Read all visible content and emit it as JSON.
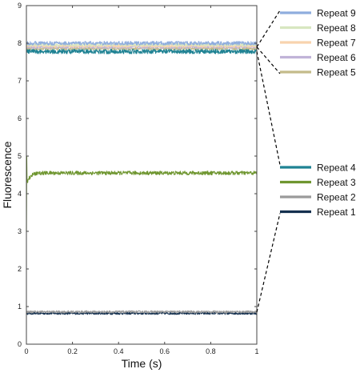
{
  "chart_data": {
    "type": "line",
    "title": "",
    "xlabel": "Time (s)",
    "ylabel": "Fluorescence",
    "xlim": [
      0,
      1
    ],
    "ylim": [
      0,
      9
    ],
    "xticks": [
      0,
      0.2,
      0.4,
      0.6,
      0.8,
      1
    ],
    "xtick_labels": [
      "0",
      "0.2",
      "0.4",
      "0.6",
      "0.8",
      "1"
    ],
    "yticks": [
      0,
      1,
      2,
      3,
      4,
      5,
      6,
      7,
      8,
      9
    ],
    "ytick_labels": [
      "0",
      "1",
      "2",
      "3",
      "4",
      "5",
      "6",
      "7",
      "8",
      "9"
    ],
    "grid": false,
    "legend_placement": "right, two groups joined to the curves by dashed lines",
    "series": [
      {
        "name": "Repeat  1",
        "color": "#14304f",
        "level": 0.82,
        "noise": 0.03
      },
      {
        "name": "Repeat  2",
        "color": "#9a9a9a",
        "level": 0.86,
        "noise": 0.03
      },
      {
        "name": "Repeat  3",
        "color": "#6f9630",
        "level": 4.55,
        "noise": 0.05,
        "transient": {
          "start": 3.0,
          "peak": 5.0
        }
      },
      {
        "name": "Repeat  4",
        "color": "#1f8293",
        "level": 7.78,
        "noise": 0.06
      },
      {
        "name": "Repeat  5",
        "color": "#c4bb8a",
        "level": 7.86,
        "noise": 0.04
      },
      {
        "name": "Repeat  6",
        "color": "#c1b3d8",
        "level": 7.9,
        "noise": 0.04
      },
      {
        "name": "Repeat  7",
        "color": "#f8d3ae",
        "level": 7.93,
        "noise": 0.04
      },
      {
        "name": "Repeat  8",
        "color": "#d8e7c0",
        "level": 7.96,
        "noise": 0.04
      },
      {
        "name": "Repeat  9",
        "color": "#8fadde",
        "level": 8.0,
        "noise": 0.05
      }
    ],
    "legend_groups": [
      {
        "entries": [
          "Repeat  9",
          "Repeat  8",
          "Repeat  7",
          "Repeat  6",
          "Repeat  5"
        ]
      },
      {
        "entries": [
          "Repeat  4",
          "Repeat  3",
          "Repeat  2",
          "Repeat  1"
        ]
      }
    ]
  }
}
